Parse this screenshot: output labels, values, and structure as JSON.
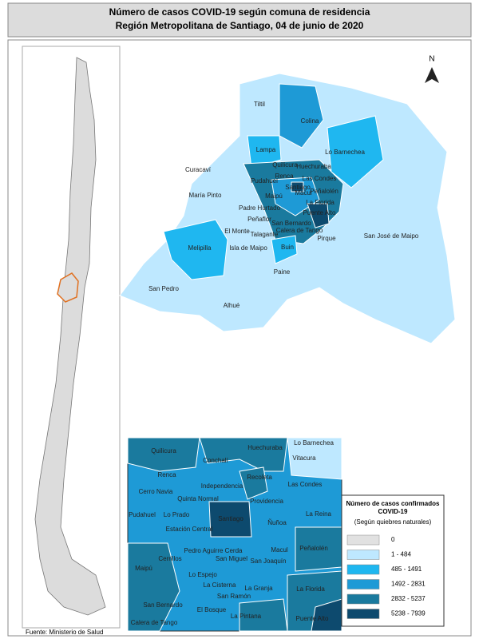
{
  "title": [
    "Número de casos COVID-19 según comuna de residencia",
    "Región Metropolitana de Santiago, 04 de junio de 2020"
  ],
  "north": "N",
  "main_map": {
    "labels": [
      "Tiltil",
      "Colina",
      "Lampa",
      "Lo Barnechea",
      "Curacaví",
      "Quilicura",
      "Huechuraba",
      "Pudahuel",
      "Renca",
      "Las Condes",
      "Santiago",
      "Maipú",
      "Macul",
      "Peñalolén",
      "María Pinto",
      "Padre Hurtado",
      "La Florida",
      "Peñaflor",
      "Puente Alto",
      "San Bernardo",
      "Calera de Tango",
      "El Monte",
      "Talagante",
      "Pirque",
      "San José de Maipo",
      "Melipilla",
      "Isla de Maipo",
      "Buin",
      "Paine",
      "San Pedro",
      "Alhué"
    ]
  },
  "inset_map": {
    "labels": [
      "Quilicura",
      "Huechuraba",
      "Lo Barnechea",
      "Vitacura",
      "Conchalí",
      "Renca",
      "Recoleta",
      "Las Condes",
      "Cerro Navia",
      "Independencia",
      "Quinta Normal",
      "Providencia",
      "La Reina",
      "Pudahuel",
      "Lo Prado",
      "Santiago",
      "Ñuñoa",
      "Estación Central",
      "Peñalolén",
      "Pedro Aguirre Cerda",
      "Macul",
      "Cerrillos",
      "San Miguel",
      "San Joaquín",
      "Maipú",
      "Lo Espejo",
      "La Cisterna",
      "La Granja",
      "La Florida",
      "San Ramón",
      "San Bernardo",
      "El Bosque",
      "La Pintana",
      "Calera de Tango",
      "Puente Alto"
    ]
  },
  "legend": {
    "title": [
      "Número de casos confirmados",
      "COVID-19"
    ],
    "subtitle": "(Según quiebres naturales)",
    "classes": [
      {
        "label": "0",
        "color": "#e1e1e1"
      },
      {
        "label": "1 - 484",
        "color": "#bee8ff"
      },
      {
        "label": "485 - 1491",
        "color": "#1fb7f0"
      },
      {
        "label": "1492 - 2831",
        "color": "#1e9ad6"
      },
      {
        "label": "2832 - 5237",
        "color": "#1a7a9e"
      },
      {
        "label": "5238 - 7939",
        "color": "#0d4a6e"
      }
    ]
  },
  "source": "Fuente: Ministerio de Salud"
}
